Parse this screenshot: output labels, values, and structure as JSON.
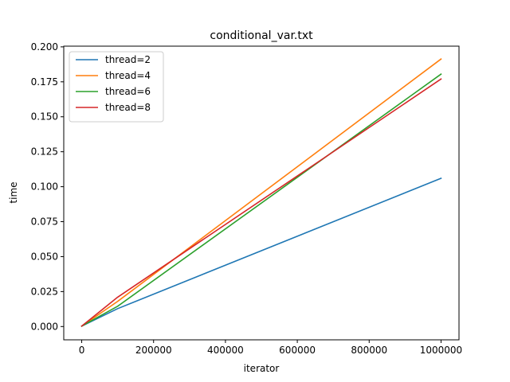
{
  "chart_data": {
    "type": "line",
    "title": "conditional_var.txt",
    "xlabel": "iterator",
    "ylabel": "time",
    "xlim": [
      -50000,
      1050000
    ],
    "ylim": [
      -0.0095,
      0.2005
    ],
    "grid": false,
    "legend_position": "top-left",
    "x_ticks": [
      0,
      200000,
      400000,
      600000,
      800000,
      1000000
    ],
    "x_tick_labels": [
      "0",
      "200000",
      "400000",
      "600000",
      "800000",
      "1000000"
    ],
    "y_ticks": [
      0.0,
      0.025,
      0.05,
      0.075,
      0.1,
      0.125,
      0.15,
      0.175,
      0.2
    ],
    "y_tick_labels": [
      "0.000",
      "0.025",
      "0.050",
      "0.075",
      "0.100",
      "0.125",
      "0.150",
      "0.175",
      "0.200"
    ],
    "x": [
      0,
      100000,
      1000000
    ],
    "series": [
      {
        "name": "thread=2",
        "color": "#1f77b4",
        "values": [
          0.0003,
          0.0128,
          0.106
        ]
      },
      {
        "name": "thread=4",
        "color": "#ff7f0e",
        "values": [
          0.0003,
          0.018,
          0.1913
        ]
      },
      {
        "name": "thread=6",
        "color": "#2ca02c",
        "values": [
          0.0003,
          0.0145,
          0.1805
        ]
      },
      {
        "name": "thread=8",
        "color": "#d62728",
        "values": [
          0.0003,
          0.021,
          0.177
        ]
      }
    ]
  }
}
